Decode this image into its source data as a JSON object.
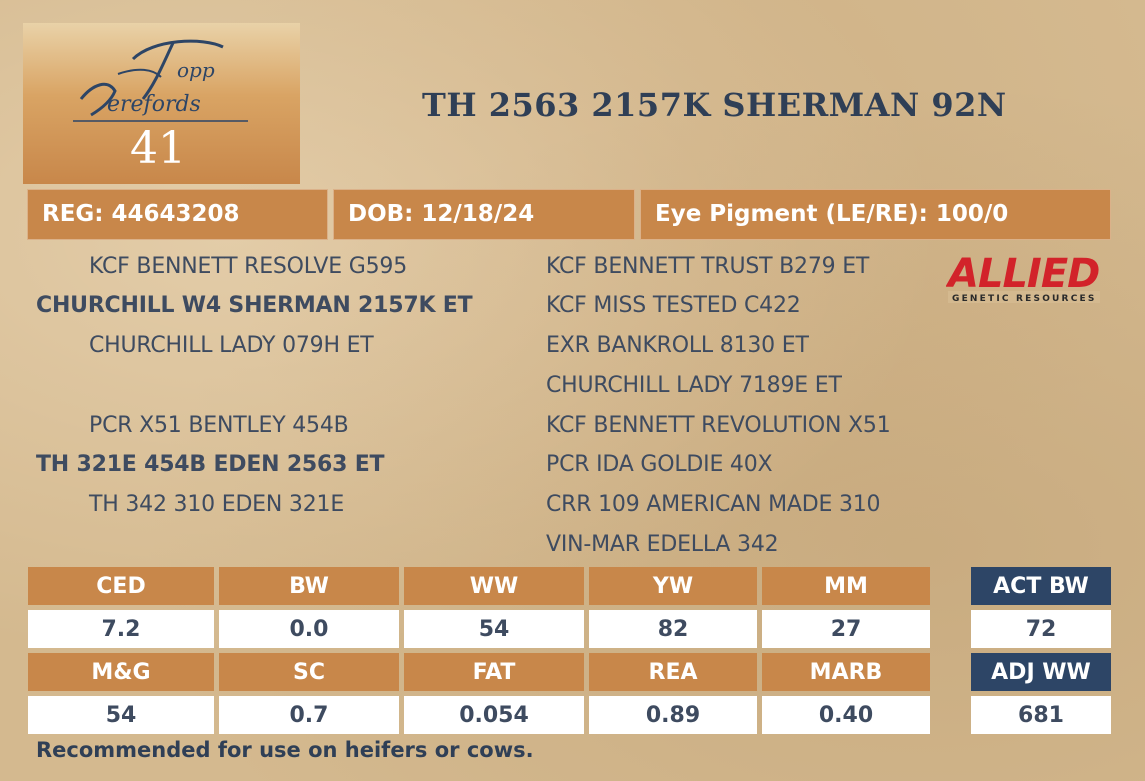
{
  "logo": {
    "alt_text": "Topp Herefords"
  },
  "lot_number": "41",
  "animal_name": "TH 2563 2157K SHERMAN 92N",
  "info": {
    "reg": "REG: 44643208",
    "dob": "DOB: 12/18/24",
    "eye_pigment": "Eye Pigment (LE/RE): 100/0"
  },
  "pedigree": {
    "sire_side": {
      "sire_sire": "KCF BENNETT RESOLVE G595",
      "sire": "CHURCHILL W4 SHERMAN 2157K ET",
      "sire_dam": "CHURCHILL LADY 079H ET",
      "sire_sire_sire": "KCF BENNETT TRUST B279 ET",
      "sire_sire_dam": "KCF MISS TESTED C422",
      "sire_dam_sire": "EXR BANKROLL 8130 ET",
      "sire_dam_dam": "CHURCHILL LADY 7189E ET"
    },
    "dam_side": {
      "dam_sire": "PCR X51 BENTLEY 454B",
      "dam": "TH 321E 454B EDEN 2563 ET",
      "dam_dam": "TH 342 310 EDEN 321E",
      "dam_sire_sire": "KCF BENNETT REVOLUTION X51",
      "dam_sire_dam": "PCR IDA GOLDIE 40X",
      "dam_dam_sire": "CRR 109 AMERICAN MADE 310",
      "dam_dam_dam": "VIN-MAR EDELLA 342"
    }
  },
  "sponsor_logo": {
    "name": "ALLIED",
    "tagline": "GENETIC RESOURCES"
  },
  "epds": {
    "row1_labels": [
      "CED",
      "BW",
      "WW",
      "YW",
      "MM"
    ],
    "row1_values": [
      "7.2",
      "0.0",
      "54",
      "82",
      "27"
    ],
    "row2_labels": [
      "M&G",
      "SC",
      "FAT",
      "REA",
      "MARB"
    ],
    "row2_values": [
      "54",
      "0.7",
      "0.054",
      "0.89",
      "0.40"
    ]
  },
  "actuals": {
    "act_bw_label": "ACT BW",
    "act_bw_value": "72",
    "adj_ww_label": "ADJ WW",
    "adj_ww_value": "681"
  },
  "footnote": "Recommended for use on heifers or cows.",
  "colors": {
    "accent": "#c8874a",
    "navy": "#2d4566",
    "text": "#3e4b60",
    "background": "#d4b98f"
  }
}
